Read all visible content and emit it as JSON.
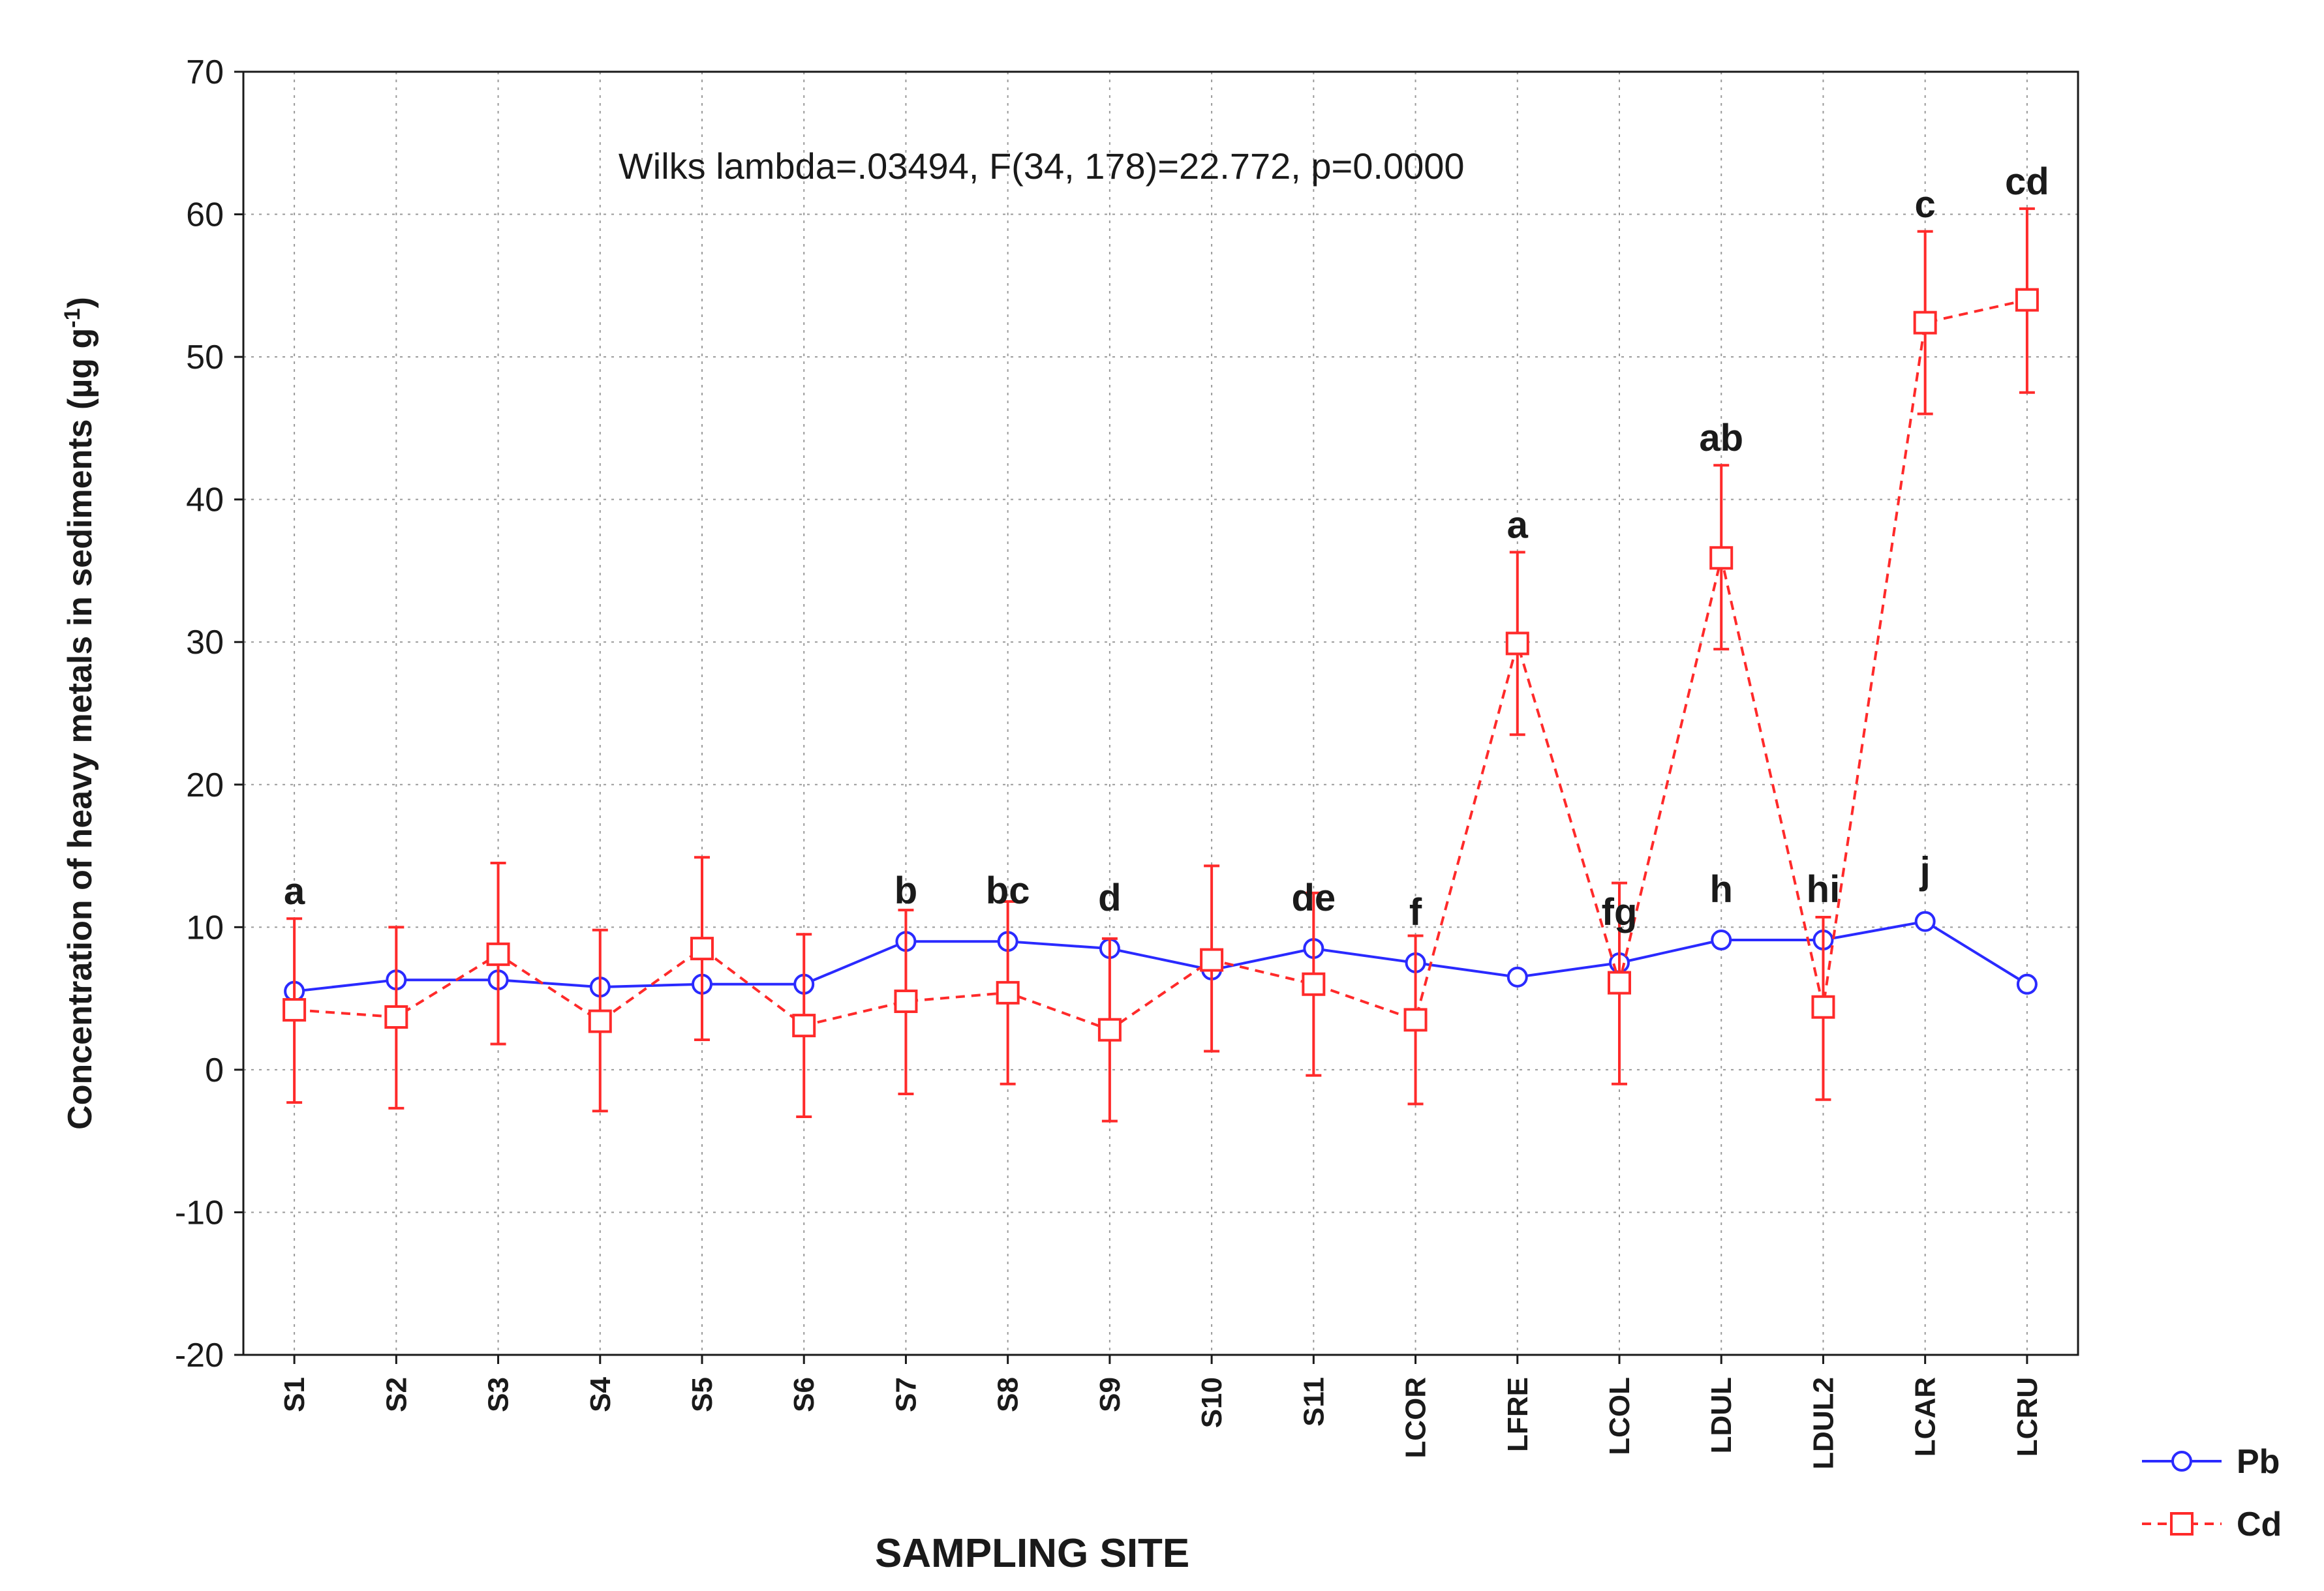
{
  "chart_data": {
    "type": "line",
    "title": "",
    "annotation": "Wilks lambda=.03494, F(34, 178)=22.772, p=0.0000",
    "xlabel": "SAMPLING SITE",
    "ylabel": "Concentration of heavy metals in sediments (µg g",
    "ylabel_sup": "-1",
    "ylabel_end": ")",
    "ylim": [
      -20,
      70
    ],
    "yticks": [
      -20,
      -10,
      0,
      10,
      20,
      30,
      40,
      50,
      60,
      70
    ],
    "grid": true,
    "legend_position": "bottom-right",
    "categories": [
      "S1",
      "S2",
      "S3",
      "S4",
      "S5",
      "S6",
      "S7",
      "S8",
      "S9",
      "S10",
      "S11",
      "LCOR",
      "LFRE",
      "LCOL",
      "LDUL",
      "LDUL2",
      "LCAR",
      "LCRU"
    ],
    "series": [
      {
        "name": "Pb",
        "color": "#2a2aff",
        "marker": "circle",
        "line": "solid",
        "values": [
          5.5,
          6.3,
          6.3,
          5.8,
          6.0,
          6.0,
          9.0,
          9.0,
          8.5,
          7.0,
          8.5,
          7.5,
          6.5,
          7.5,
          9.1,
          9.1,
          10.4,
          6.0
        ],
        "err_low": [
          null,
          null,
          null,
          null,
          null,
          null,
          null,
          null,
          null,
          null,
          null,
          null,
          null,
          null,
          null,
          null,
          null,
          null
        ],
        "err_high": [
          null,
          null,
          null,
          null,
          null,
          null,
          null,
          null,
          null,
          null,
          null,
          null,
          null,
          null,
          null,
          null,
          null,
          null
        ],
        "letters": [
          "",
          "",
          "",
          "",
          "",
          "",
          "b",
          "bc",
          "d",
          "",
          "de",
          "f",
          "",
          "fg",
          "h",
          "hi",
          "j",
          ""
        ]
      },
      {
        "name": "Cd",
        "color": "#ff2a2a",
        "marker": "square",
        "line": "dashed",
        "values": [
          4.2,
          3.7,
          8.1,
          3.4,
          8.5,
          3.1,
          4.8,
          5.4,
          2.8,
          7.7,
          6.0,
          3.5,
          29.9,
          6.1,
          35.9,
          4.4,
          52.4,
          54.0
        ],
        "err_low": [
          -2.3,
          -2.7,
          1.8,
          -2.9,
          2.1,
          -3.3,
          -1.7,
          -1.0,
          -3.6,
          1.3,
          -0.4,
          -2.4,
          23.5,
          -1.0,
          29.5,
          -2.1,
          46.0,
          47.5
        ],
        "err_high": [
          10.6,
          10.0,
          14.5,
          9.8,
          14.9,
          9.5,
          11.2,
          11.8,
          9.2,
          14.3,
          12.4,
          9.4,
          36.3,
          13.1,
          42.4,
          10.7,
          58.8,
          60.4
        ],
        "letters": [
          "a",
          "",
          "",
          "",
          "",
          "",
          "",
          "",
          "",
          "",
          "",
          "",
          "a",
          "",
          "ab",
          "",
          "c",
          "cd"
        ]
      }
    ]
  }
}
